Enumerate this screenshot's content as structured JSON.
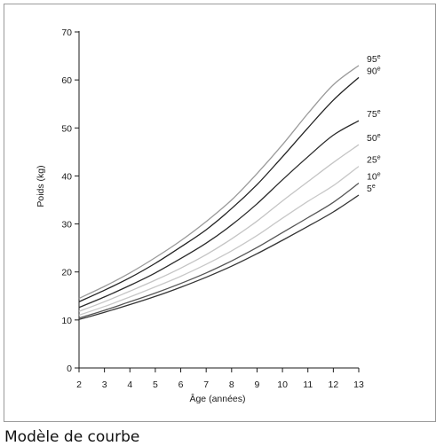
{
  "caption": "Modèle de courbe",
  "chart_data": {
    "type": "line",
    "xlabel": "Âge (années)",
    "ylabel": "Poids (kg)",
    "xlim": [
      2,
      13
    ],
    "ylim": [
      0,
      70
    ],
    "x_ticks": [
      2,
      3,
      4,
      5,
      6,
      7,
      8,
      9,
      10,
      11,
      12,
      13
    ],
    "y_ticks": [
      0,
      10,
      20,
      30,
      40,
      50,
      60,
      70
    ],
    "grid": false,
    "x": [
      2,
      3,
      4,
      5,
      6,
      7,
      8,
      9,
      10,
      11,
      12,
      13
    ],
    "series": [
      {
        "name": "95",
        "suffix": "e",
        "color": "#9a9a9a",
        "values": [
          14.5,
          17.0,
          19.8,
          23.0,
          26.5,
          30.5,
          35.0,
          40.5,
          46.5,
          53.0,
          59.0,
          63.0
        ]
      },
      {
        "name": "90",
        "suffix": "e",
        "color": "#222222",
        "values": [
          13.8,
          16.2,
          18.8,
          21.8,
          25.2,
          28.8,
          33.2,
          38.2,
          44.0,
          50.0,
          55.8,
          60.5
        ]
      },
      {
        "name": "75",
        "suffix": "e",
        "color": "#2a2a2a",
        "values": [
          12.6,
          14.8,
          17.2,
          19.8,
          22.8,
          26.0,
          29.8,
          34.2,
          39.2,
          44.0,
          48.5,
          51.5
        ]
      },
      {
        "name": "50",
        "suffix": "e",
        "color": "#c4c4c4",
        "values": [
          11.8,
          13.8,
          16.0,
          18.3,
          20.8,
          23.6,
          26.9,
          30.6,
          34.8,
          38.8,
          42.8,
          46.5
        ]
      },
      {
        "name": "25",
        "suffix": "e",
        "color": "#c8c8c8",
        "values": [
          11.0,
          12.8,
          14.8,
          16.9,
          19.1,
          21.6,
          24.4,
          27.6,
          31.2,
          34.7,
          38.0,
          42.0
        ]
      },
      {
        "name": "10",
        "suffix": "e",
        "color": "#555555",
        "values": [
          10.4,
          12.0,
          13.8,
          15.6,
          17.6,
          19.8,
          22.3,
          25.1,
          28.2,
          31.3,
          34.5,
          38.5
        ]
      },
      {
        "name": "5",
        "suffix": "e",
        "color": "#333333",
        "values": [
          10.1,
          11.6,
          13.2,
          14.9,
          16.8,
          18.9,
          21.2,
          23.8,
          26.6,
          29.5,
          32.5,
          36.0
        ]
      }
    ]
  }
}
